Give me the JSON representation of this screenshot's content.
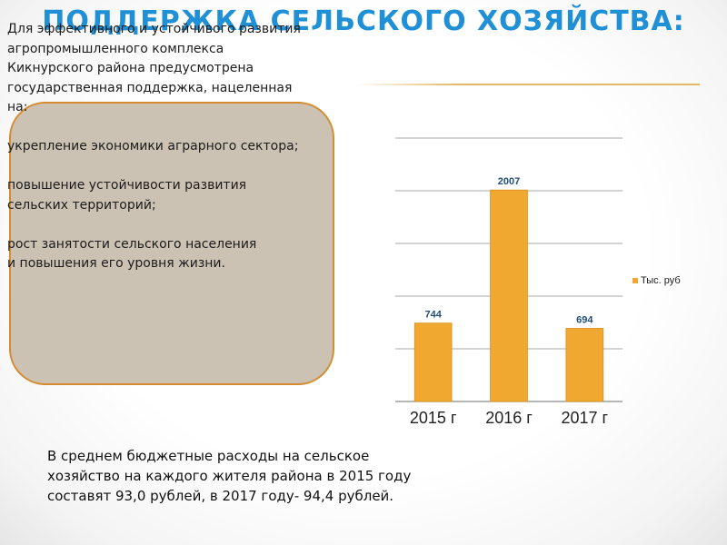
{
  "slide": {
    "title": "ПОДДЕРЖКА СЕЛЬСКОГО ХОЗЯЙСТВА:"
  },
  "text_box": {
    "lines": [
      "Для эффективного и устойчивого развития",
      "агропромышленного комплекса",
      "Кикнурского района предусмотрена",
      "государственная поддержка,  нацеленная",
      "на:",
      "",
      "укрепление экономики аграрного сектора;",
      "",
      "повышение устойчивости развития",
      "сельских территорий;",
      "",
      "рост занятости сельского населения",
      "и повышения его уровня жизни."
    ]
  },
  "footer": {
    "lines": [
      "В среднем бюджетные расходы на сельское",
      "хозяйство на каждого жителя района в 2015 году",
      "составят 93,0 рублей, в 2017 году- 94,4 рублей."
    ]
  },
  "chart_data": {
    "type": "bar",
    "categories": [
      "2015 г",
      "2016 г",
      "2017 г"
    ],
    "series": [
      {
        "name": "Тыс. руб",
        "values": [
          744,
          2007,
          694
        ],
        "data_labels": [
          "744",
          "2007",
          "694"
        ]
      }
    ],
    "ylim": [
      0,
      2500
    ],
    "y_tick_step": 500,
    "y_tick_labels_visible": false,
    "grid": true,
    "legend_position": "right",
    "colors": {
      "bar": "#f0a830",
      "bar_edge": "#d98e1a",
      "grid": "#8c8c8c",
      "data_label": "#1f4e79"
    }
  }
}
